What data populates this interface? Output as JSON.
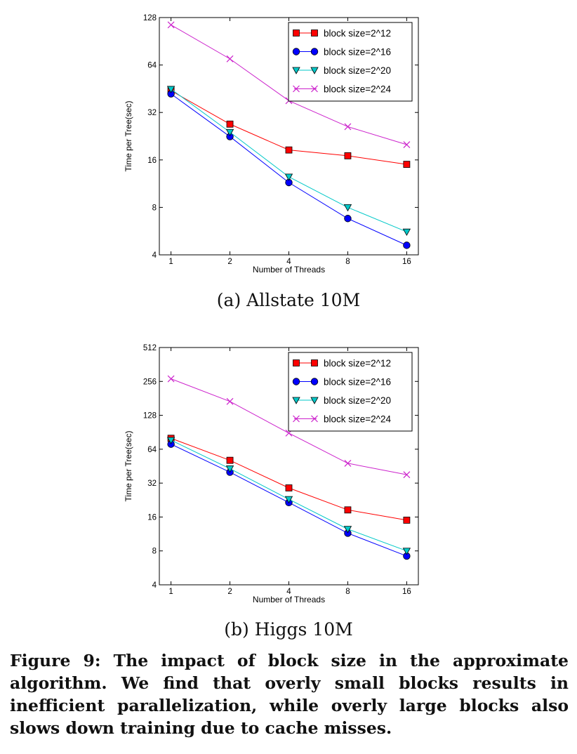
{
  "figure": {
    "label": "Figure 9:",
    "caption": "The impact of block size in the approximate algorithm. We find that overly small blocks results in inefficient parallelization, while overly large blocks also slows down training due to cache misses."
  },
  "styles": {
    "block size=2^12": {
      "color": "#ff0000",
      "marker": "square"
    },
    "block size=2^16": {
      "color": "#0000ff",
      "marker": "circle"
    },
    "block size=2^20": {
      "color": "#00c8c8",
      "marker": "triangle"
    },
    "block size=2^24": {
      "color": "#cc22cc",
      "marker": "x"
    }
  },
  "chart_data": [
    {
      "type": "line",
      "title": "",
      "caption": "(a) Allstate 10M",
      "xlabel": "Number of Threads",
      "ylabel": "Time per Tree(sec)",
      "xscale": "log2",
      "yscale": "log2",
      "categories": [
        "1",
        "2",
        "4",
        "8",
        "16"
      ],
      "x": [
        1,
        2,
        4,
        8,
        16
      ],
      "yticks": [
        4,
        8,
        16,
        32,
        64,
        128
      ],
      "ylim": [
        4,
        128
      ],
      "grid": false,
      "legend": "top-right",
      "series": [
        {
          "name": "block size=2^12",
          "values": [
            44,
            27,
            18.5,
            17,
            15
          ]
        },
        {
          "name": "block size=2^16",
          "values": [
            42,
            22.5,
            11.5,
            6.8,
            4.6
          ]
        },
        {
          "name": "block size=2^20",
          "values": [
            45,
            24,
            12.5,
            8,
            5.6
          ]
        },
        {
          "name": "block size=2^24",
          "values": [
            115,
            70,
            38,
            26,
            20
          ]
        }
      ]
    },
    {
      "type": "line",
      "title": "",
      "caption": "(b) Higgs 10M",
      "xlabel": "Number of Threads",
      "ylabel": "Time per Tree(sec)",
      "xscale": "log2",
      "yscale": "log2",
      "categories": [
        "1",
        "2",
        "4",
        "8",
        "16"
      ],
      "x": [
        1,
        2,
        4,
        8,
        16
      ],
      "yticks": [
        4,
        8,
        16,
        32,
        64,
        128,
        256,
        512
      ],
      "ylim": [
        4,
        512
      ],
      "grid": false,
      "legend": "top-right",
      "series": [
        {
          "name": "block size=2^12",
          "values": [
            80,
            51,
            29,
            18.5,
            15
          ]
        },
        {
          "name": "block size=2^16",
          "values": [
            71,
            40,
            21.5,
            11.5,
            7.2
          ]
        },
        {
          "name": "block size=2^20",
          "values": [
            77,
            43,
            23,
            12.5,
            8
          ]
        },
        {
          "name": "block size=2^24",
          "values": [
            270,
            170,
            89,
            48,
            38
          ]
        }
      ]
    }
  ]
}
